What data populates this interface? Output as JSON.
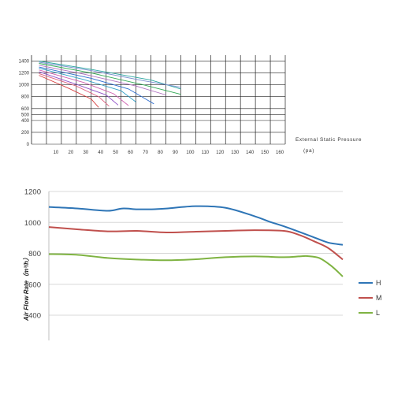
{
  "chart_data": [
    {
      "type": "line",
      "title": "",
      "xlabel": "External Static Pressure",
      "xunit": "(pa)",
      "ylabel": "",
      "x_ticks": [
        "10",
        "20",
        "30",
        "40",
        "50",
        "60",
        "70",
        "80",
        "90",
        "100",
        "110",
        "120",
        "130",
        "140",
        "150",
        "160"
      ],
      "y_ticks": [
        "1400",
        "1200",
        "1000",
        "800",
        "600",
        "500",
        "400",
        "200",
        "0"
      ],
      "xlim": [
        0,
        170
      ],
      "ylim": [
        0,
        1500
      ],
      "grid": true,
      "series": [
        {
          "color": "#2aa6a0",
          "points": [
            [
              5,
              1400
            ],
            [
              40,
              1260
            ],
            [
              80,
              1080
            ],
            [
              100,
              930
            ]
          ]
        },
        {
          "color": "#7a8fd0",
          "points": [
            [
              5,
              1380
            ],
            [
              40,
              1240
            ],
            [
              75,
              1070
            ],
            [
              100,
              960
            ]
          ]
        },
        {
          "color": "#33aa55",
          "points": [
            [
              5,
              1360
            ],
            [
              40,
              1200
            ],
            [
              75,
              1000
            ],
            [
              100,
              840
            ]
          ]
        },
        {
          "color": "#b070c0",
          "points": [
            [
              5,
              1330
            ],
            [
              35,
              1180
            ],
            [
              70,
              980
            ],
            [
              90,
              830
            ]
          ]
        },
        {
          "color": "#2f6fd0",
          "points": [
            [
              5,
              1300
            ],
            [
              40,
              1110
            ],
            [
              65,
              930
            ],
            [
              82,
              680
            ]
          ]
        },
        {
          "color": "#30a0c8",
          "points": [
            [
              5,
              1280
            ],
            [
              35,
              1090
            ],
            [
              60,
              900
            ],
            [
              70,
              710
            ]
          ]
        },
        {
          "color": "#d060b0",
          "points": [
            [
              5,
              1250
            ],
            [
              35,
              1040
            ],
            [
              55,
              850
            ],
            [
              65,
              650
            ]
          ]
        },
        {
          "color": "#9050c8",
          "points": [
            [
              5,
              1220
            ],
            [
              30,
              1010
            ],
            [
              50,
              830
            ],
            [
              58,
              660
            ]
          ]
        },
        {
          "color": "#e06080",
          "points": [
            [
              5,
              1190
            ],
            [
              30,
              980
            ],
            [
              45,
              800
            ],
            [
              52,
              640
            ]
          ]
        },
        {
          "color": "#d84040",
          "points": [
            [
              5,
              1160
            ],
            [
              25,
              940
            ],
            [
              40,
              760
            ],
            [
              45,
              620
            ]
          ]
        }
      ]
    },
    {
      "type": "line",
      "title": "",
      "xlabel": "",
      "ylabel": "Air Flow Rate（m³/h）",
      "y_ticks": [
        1200,
        1000,
        800,
        600,
        400
      ],
      "ylim": [
        400,
        1200
      ],
      "xlim": [
        0,
        100
      ],
      "grid": true,
      "legend_position": "right",
      "series": [
        {
          "name": "H",
          "color": "#2e75b6",
          "x": [
            0,
            10,
            20,
            25,
            30,
            35,
            40,
            50,
            60,
            70,
            75,
            80,
            85,
            90,
            95,
            100
          ],
          "values": [
            1100,
            1090,
            1075,
            1090,
            1085,
            1085,
            1090,
            1105,
            1095,
            1040,
            1005,
            975,
            940,
            905,
            870,
            855
          ]
        },
        {
          "name": "M",
          "color": "#c0504d",
          "x": [
            0,
            10,
            20,
            30,
            40,
            50,
            60,
            70,
            80,
            85,
            90,
            95,
            100
          ],
          "values": [
            970,
            955,
            942,
            945,
            935,
            940,
            945,
            950,
            945,
            920,
            880,
            835,
            760
          ]
        },
        {
          "name": "L",
          "color": "#7fb342",
          "x": [
            0,
            10,
            20,
            30,
            40,
            50,
            60,
            70,
            80,
            85,
            88,
            92,
            96,
            100
          ],
          "values": [
            795,
            790,
            770,
            760,
            755,
            762,
            775,
            780,
            775,
            780,
            782,
            770,
            720,
            650
          ]
        }
      ]
    }
  ]
}
